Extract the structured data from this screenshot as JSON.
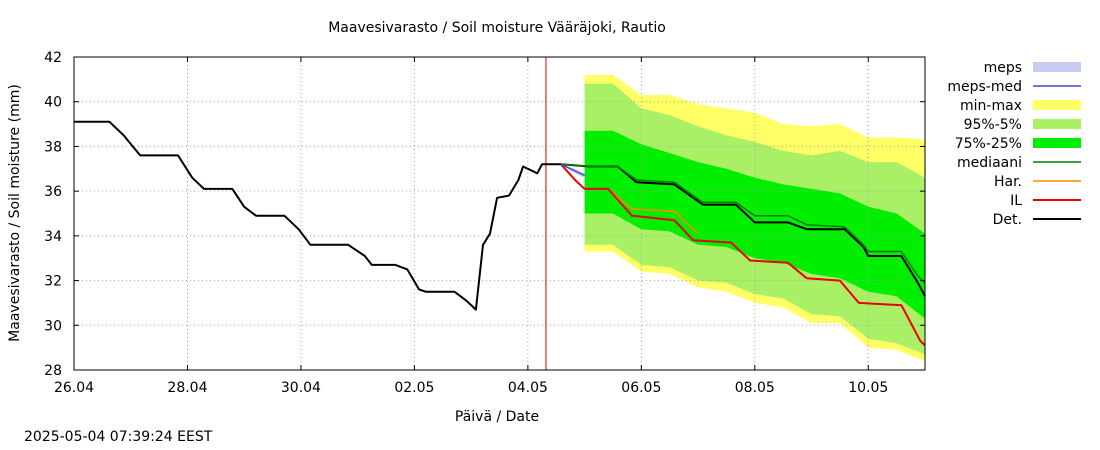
{
  "chart_data": {
    "type": "area",
    "title": "Maavesivarasto / Soil moisture   Vääräjoki, Rautio",
    "xlabel": "Päivä / Date",
    "ylabel": "Maavesivarasto / Soil moisture (mm)",
    "ylim": [
      28,
      42
    ],
    "yticks": [
      28,
      30,
      32,
      34,
      36,
      38,
      40,
      42
    ],
    "xlim": [
      "2025-04-26",
      "2025-05-11"
    ],
    "xticks": [
      {
        "date": "2025-04-26",
        "label": "26.04"
      },
      {
        "date": "2025-04-28",
        "label": "28.04"
      },
      {
        "date": "2025-04-30",
        "label": "30.04"
      },
      {
        "date": "2025-05-02",
        "label": "02.05"
      },
      {
        "date": "2025-05-04",
        "label": "04.05"
      },
      {
        "date": "2025-05-06",
        "label": "06.05"
      },
      {
        "date": "2025-05-08",
        "label": "08.05"
      },
      {
        "date": "2025-05-10",
        "label": "10.05"
      }
    ],
    "grid": true,
    "legend_position": "right",
    "current_time": "2025-05-04 07:39",
    "legend": [
      {
        "label": "meps",
        "kind": "band",
        "color": "#c8ccf4"
      },
      {
        "label": "meps-med",
        "kind": "line",
        "color": "#4646d2"
      },
      {
        "label": "min-max",
        "kind": "band",
        "color": "#ffff66"
      },
      {
        "label": "95%-5%",
        "kind": "band",
        "color": "#aaf066"
      },
      {
        "label": "75%-25%",
        "kind": "band",
        "color": "#00ee00"
      },
      {
        "label": "mediaani",
        "kind": "line",
        "color": "#008000"
      },
      {
        "label": "Har.",
        "kind": "line",
        "color": "#ff8800"
      },
      {
        "label": "IL",
        "kind": "line",
        "color": "#ee0000"
      },
      {
        "label": "Det.",
        "kind": "line",
        "color": "#000000"
      }
    ],
    "series": [
      {
        "name": "Det.",
        "points": [
          [
            "2025-04-26 00:00",
            39.1
          ],
          [
            "2025-04-26 15:00",
            39.1
          ],
          [
            "2025-04-26 21:00",
            38.5
          ],
          [
            "2025-04-27 04:00",
            37.6
          ],
          [
            "2025-04-27 14:00",
            37.6
          ],
          [
            "2025-04-27 20:00",
            37.6
          ],
          [
            "2025-04-28 02:00",
            36.6
          ],
          [
            "2025-04-28 07:00",
            36.1
          ],
          [
            "2025-04-28 14:00",
            36.1
          ],
          [
            "2025-04-28 19:00",
            36.1
          ],
          [
            "2025-04-29 00:00",
            35.3
          ],
          [
            "2025-04-29 05:00",
            34.9
          ],
          [
            "2025-04-29 17:00",
            34.9
          ],
          [
            "2025-04-29 23:00",
            34.3
          ],
          [
            "2025-04-30 04:00",
            33.6
          ],
          [
            "2025-04-30 14:00",
            33.6
          ],
          [
            "2025-04-30 20:00",
            33.6
          ],
          [
            "2025-05-01 03:00",
            33.1
          ],
          [
            "2025-05-01 06:00",
            32.7
          ],
          [
            "2025-05-01 16:00",
            32.7
          ],
          [
            "2025-05-01 21:00",
            32.5
          ],
          [
            "2025-05-02 02:00",
            31.6
          ],
          [
            "2025-05-02 05:00",
            31.5
          ],
          [
            "2025-05-02 17:00",
            31.5
          ],
          [
            "2025-05-02 22:00",
            31.1
          ],
          [
            "2025-05-03 02:00",
            30.7
          ],
          [
            "2025-05-03 05:00",
            33.6
          ],
          [
            "2025-05-03 08:00",
            34.1
          ],
          [
            "2025-05-03 11:00",
            35.7
          ],
          [
            "2025-05-03 16:00",
            35.8
          ],
          [
            "2025-05-03 20:00",
            36.5
          ],
          [
            "2025-05-03 22:00",
            37.1
          ],
          [
            "2025-05-04 04:00",
            36.8
          ],
          [
            "2025-05-04 06:00",
            37.2
          ],
          [
            "2025-05-04 14:00",
            37.2
          ],
          [
            "2025-05-05 02:00",
            37.1
          ],
          [
            "2025-05-05 14:00",
            37.1
          ],
          [
            "2025-05-05 22:00",
            36.4
          ],
          [
            "2025-05-06 14:00",
            36.3
          ],
          [
            "2025-05-07 02:00",
            35.4
          ],
          [
            "2025-05-07 16:00",
            35.4
          ],
          [
            "2025-05-08 00:00",
            34.6
          ],
          [
            "2025-05-08 14:00",
            34.6
          ],
          [
            "2025-05-08 22:00",
            34.3
          ],
          [
            "2025-05-09 14:00",
            34.3
          ],
          [
            "2025-05-09 22:00",
            33.5
          ],
          [
            "2025-05-10 00:00",
            33.1
          ],
          [
            "2025-05-10 14:00",
            33.1
          ],
          [
            "2025-05-10 21:00",
            31.9
          ],
          [
            "2025-05-11 00:00",
            31.3
          ]
        ]
      },
      {
        "name": "mediaani",
        "points": [
          [
            "2025-05-04 14:00",
            37.2
          ],
          [
            "2025-05-05 02:00",
            37.1
          ],
          [
            "2025-05-05 14:00",
            37.1
          ],
          [
            "2025-05-05 22:00",
            36.5
          ],
          [
            "2025-05-06 14:00",
            36.4
          ],
          [
            "2025-05-07 02:00",
            35.5
          ],
          [
            "2025-05-07 16:00",
            35.5
          ],
          [
            "2025-05-08 00:00",
            34.9
          ],
          [
            "2025-05-08 14:00",
            34.9
          ],
          [
            "2025-05-08 22:00",
            34.5
          ],
          [
            "2025-05-09 14:00",
            34.4
          ],
          [
            "2025-05-09 22:00",
            33.6
          ],
          [
            "2025-05-10 00:00",
            33.3
          ],
          [
            "2025-05-10 14:00",
            33.3
          ],
          [
            "2025-05-10 21:00",
            32.2
          ],
          [
            "2025-05-11 00:00",
            31.9
          ]
        ]
      },
      {
        "name": "Har.",
        "points": [
          [
            "2025-05-04 14:00",
            37.2
          ],
          [
            "2025-05-04 20:00",
            36.5
          ],
          [
            "2025-05-05 00:00",
            36.1
          ],
          [
            "2025-05-05 10:00",
            36.1
          ],
          [
            "2025-05-05 20:00",
            35.2
          ],
          [
            "2025-05-06 14:00",
            35.1
          ],
          [
            "2025-05-06 20:00",
            34.5
          ],
          [
            "2025-05-07 00:00",
            34.1
          ]
        ]
      },
      {
        "name": "IL",
        "points": [
          [
            "2025-05-04 14:00",
            37.2
          ],
          [
            "2025-05-04 20:00",
            36.5
          ],
          [
            "2025-05-05 00:00",
            36.1
          ],
          [
            "2025-05-05 10:00",
            36.1
          ],
          [
            "2025-05-05 20:00",
            34.9
          ],
          [
            "2025-05-06 14:00",
            34.7
          ],
          [
            "2025-05-06 22:00",
            33.8
          ],
          [
            "2025-05-07 14:00",
            33.7
          ],
          [
            "2025-05-07 22:00",
            32.9
          ],
          [
            "2025-05-08 14:00",
            32.8
          ],
          [
            "2025-05-08 22:00",
            32.1
          ],
          [
            "2025-05-09 12:00",
            32.0
          ],
          [
            "2025-05-09 20:00",
            31.0
          ],
          [
            "2025-05-10 14:00",
            30.9
          ],
          [
            "2025-05-10 22:00",
            29.3
          ],
          [
            "2025-05-11 00:00",
            29.1
          ]
        ]
      },
      {
        "name": "meps-med",
        "points": [
          [
            "2025-05-04 14:00",
            37.2
          ],
          [
            "2025-05-04 20:00",
            36.9
          ],
          [
            "2025-05-05 00:00",
            36.7
          ]
        ]
      }
    ],
    "bands": [
      {
        "name": "min-max",
        "x": [
          "2025-05-05 00:00",
          "2025-05-05 12:00",
          "2025-05-06 00:00",
          "2025-05-06 12:00",
          "2025-05-07 00:00",
          "2025-05-07 12:00",
          "2025-05-08 00:00",
          "2025-05-08 12:00",
          "2025-05-09 00:00",
          "2025-05-09 12:00",
          "2025-05-10 00:00",
          "2025-05-10 12:00",
          "2025-05-11 00:00"
        ],
        "upper": [
          41.2,
          41.2,
          40.3,
          40.3,
          39.9,
          39.7,
          39.5,
          39.0,
          38.9,
          39.0,
          38.4,
          38.4,
          38.3
        ],
        "lower": [
          33.3,
          33.3,
          32.4,
          32.3,
          31.7,
          31.5,
          31.0,
          30.8,
          30.1,
          30.1,
          29.0,
          28.9,
          28.4
        ]
      },
      {
        "name": "95%-5%",
        "x": [
          "2025-05-05 00:00",
          "2025-05-05 12:00",
          "2025-05-06 00:00",
          "2025-05-06 12:00",
          "2025-05-07 00:00",
          "2025-05-07 12:00",
          "2025-05-08 00:00",
          "2025-05-08 12:00",
          "2025-05-09 00:00",
          "2025-05-09 12:00",
          "2025-05-10 00:00",
          "2025-05-10 12:00",
          "2025-05-11 00:00"
        ],
        "upper": [
          40.8,
          40.8,
          39.7,
          39.4,
          38.9,
          38.5,
          38.2,
          37.8,
          37.6,
          37.8,
          37.3,
          37.3,
          36.6
        ],
        "lower": [
          33.6,
          33.6,
          32.7,
          32.6,
          32.0,
          31.9,
          31.4,
          31.2,
          30.5,
          30.4,
          29.4,
          29.2,
          28.7
        ]
      },
      {
        "name": "75%-25%",
        "x": [
          "2025-05-05 00:00",
          "2025-05-05 12:00",
          "2025-05-06 00:00",
          "2025-05-06 12:00",
          "2025-05-07 00:00",
          "2025-05-07 12:00",
          "2025-05-08 00:00",
          "2025-05-08 12:00",
          "2025-05-09 00:00",
          "2025-05-09 12:00",
          "2025-05-10 00:00",
          "2025-05-10 12:00",
          "2025-05-11 00:00"
        ],
        "upper": [
          38.7,
          38.7,
          38.1,
          37.7,
          37.3,
          37.0,
          36.6,
          36.3,
          36.1,
          35.9,
          35.3,
          35.0,
          34.1
        ],
        "lower": [
          35.0,
          35.0,
          34.3,
          34.2,
          33.6,
          33.5,
          33.0,
          32.8,
          32.3,
          32.1,
          31.5,
          31.3,
          30.3
        ]
      },
      {
        "name": "meps",
        "x": [
          "2025-05-04 14:00",
          "2025-05-04 20:00",
          "2025-05-05 00:00"
        ],
        "upper": [
          37.2,
          37.0,
          36.8
        ],
        "lower": [
          37.2,
          36.8,
          36.6
        ]
      }
    ]
  },
  "timestamp": "2025-05-04 07:39:24 EEST"
}
